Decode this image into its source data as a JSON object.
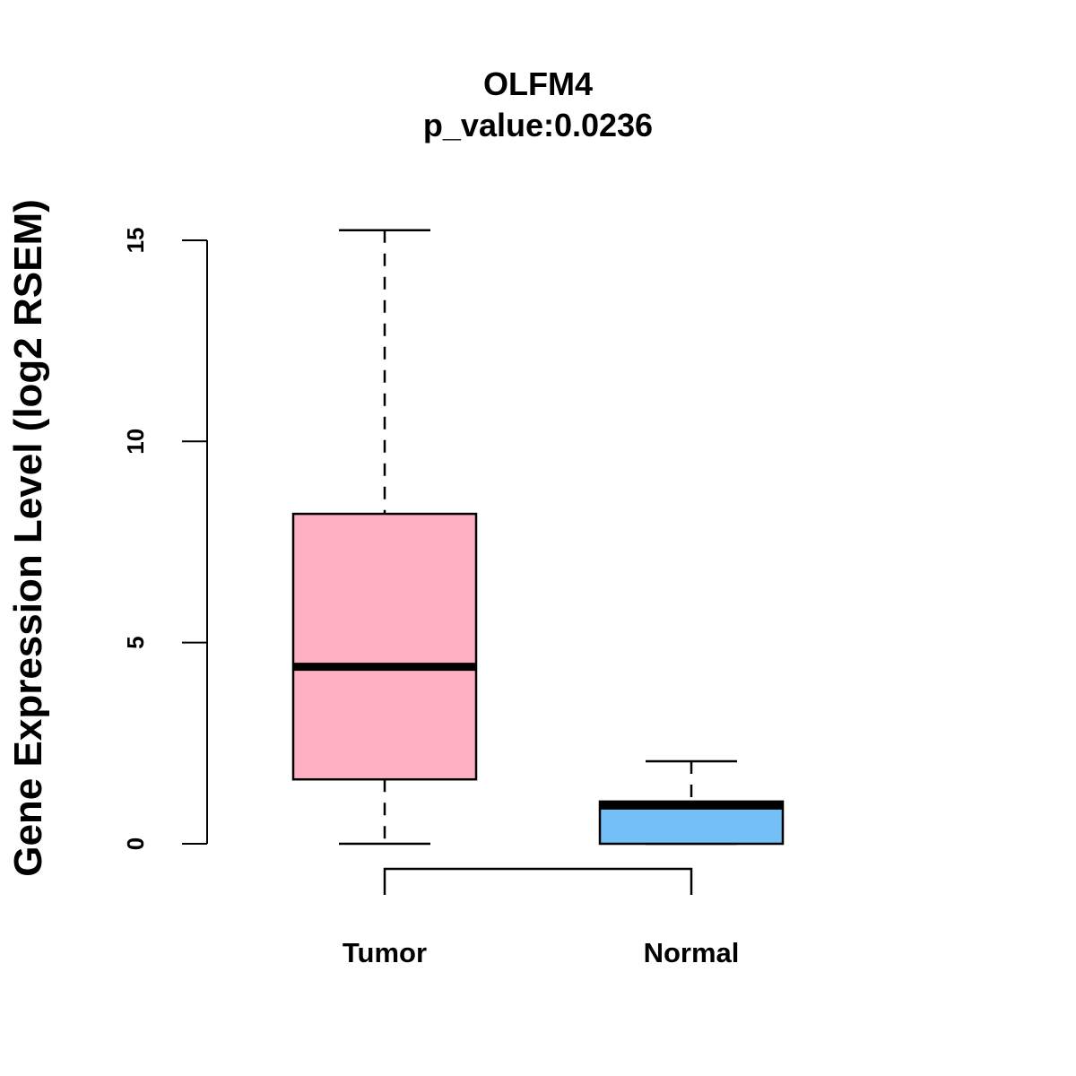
{
  "chart_data": {
    "type": "boxplot",
    "title": "OLFM4",
    "subtitle": "p_value:0.0236",
    "xlabel": "",
    "ylabel": "Gene Expression Level (log2 RSEM)",
    "ylim": [
      0,
      15
    ],
    "yticks": [
      0,
      5,
      10,
      15
    ],
    "categories": [
      "Tumor",
      "Normal"
    ],
    "series": [
      {
        "name": "Tumor",
        "whisker_low": 0.0,
        "q1": 1.6,
        "median": 4.4,
        "q3": 8.2,
        "whisker_high": 15.25,
        "color": "#FDB1C3"
      },
      {
        "name": "Normal",
        "whisker_low": 0.0,
        "q1": 0.0,
        "median": 0.95,
        "q3": 1.05,
        "whisker_high": 2.05,
        "color": "#75BFF7"
      }
    ],
    "comparison_bracket": [
      "Tumor",
      "Normal"
    ],
    "grid": false
  }
}
